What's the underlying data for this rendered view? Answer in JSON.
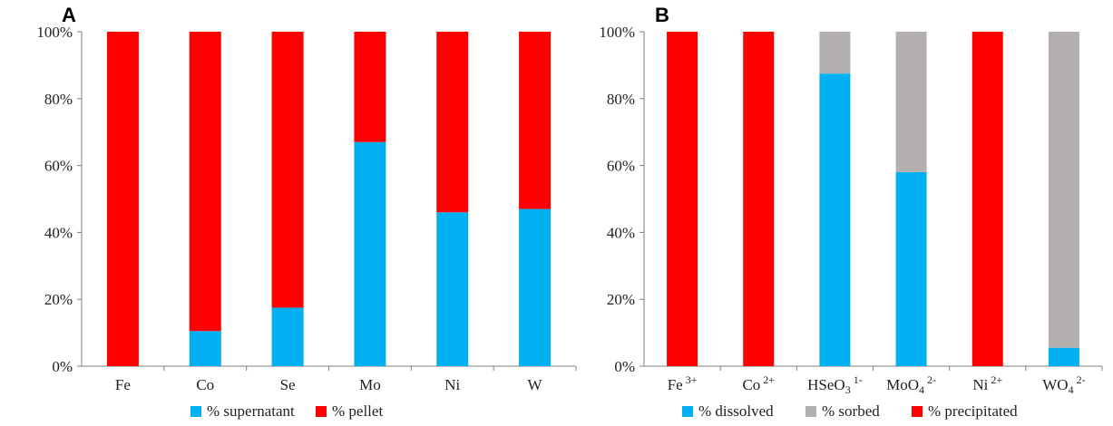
{
  "chart_data": [
    {
      "panel": "A",
      "type": "bar",
      "stacked": true,
      "categories": [
        "Fe",
        "Co",
        "Se",
        "Mo",
        "Ni",
        "W"
      ],
      "series": [
        {
          "name": "% supernatant",
          "color": "#00b0f0",
          "values": [
            0,
            10.5,
            17.5,
            67,
            46,
            47
          ]
        },
        {
          "name": "% pellet",
          "color": "#ff0000",
          "values": [
            100,
            89.5,
            82.5,
            33,
            54,
            53
          ]
        }
      ],
      "yticks": [
        "0%",
        "20%",
        "40%",
        "60%",
        "80%",
        "100%"
      ],
      "ylim": [
        0,
        100
      ],
      "legend": "bottom"
    },
    {
      "panel": "B",
      "type": "bar",
      "stacked": true,
      "categories": [
        {
          "base": "Fe",
          "sub": "",
          "sup": "3+"
        },
        {
          "base": "Co",
          "sub": "",
          "sup": "2+"
        },
        {
          "base": "HSeO",
          "sub": "3",
          "sup": "1-"
        },
        {
          "base": "MoO",
          "sub": "4",
          "sup": "2-"
        },
        {
          "base": "Ni",
          "sub": "",
          "sup": "2+"
        },
        {
          "base": "WO",
          "sub": "4",
          "sup": "2-"
        }
      ],
      "series": [
        {
          "name": "% dissolved",
          "color": "#00b0f0",
          "values": [
            0,
            0,
            87.5,
            58,
            0,
            5.5
          ]
        },
        {
          "name": "% sorbed",
          "color": "#b3afaf",
          "values": [
            0,
            0,
            12.5,
            42,
            0,
            94.5
          ]
        },
        {
          "name": "% precipitated",
          "color": "#ff0000",
          "values": [
            100,
            100,
            0,
            0,
            100,
            0
          ]
        }
      ],
      "yticks": [
        "0%",
        "20%",
        "40%",
        "60%",
        "80%",
        "100%"
      ],
      "ylim": [
        0,
        100
      ],
      "legend": "bottom"
    }
  ]
}
